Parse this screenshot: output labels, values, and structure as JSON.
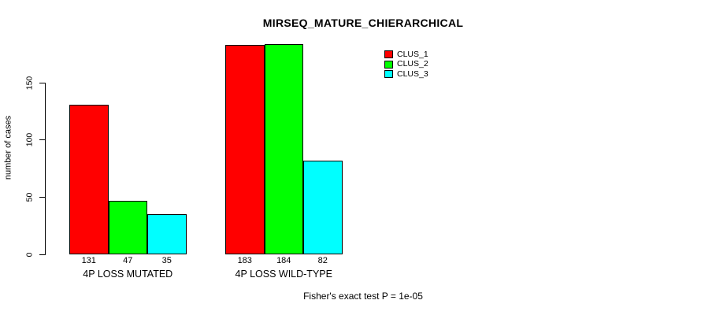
{
  "chart_data": {
    "type": "bar",
    "title": "MIRSEQ_MATURE_CHIERARCHICAL",
    "xlabel": "",
    "ylabel": "number of cases",
    "categories": [
      "4P LOSS MUTATED",
      "4P LOSS WILD-TYPE"
    ],
    "series": [
      {
        "name": "CLUS_1",
        "color": "#ff0000",
        "values": [
          131,
          183
        ]
      },
      {
        "name": "CLUS_2",
        "color": "#00ff00",
        "values": [
          47,
          184
        ]
      },
      {
        "name": "CLUS_3",
        "color": "#00ffff",
        "values": [
          35,
          82
        ]
      }
    ],
    "yticks": [
      0,
      50,
      100,
      150
    ],
    "ylim": [
      0,
      190
    ],
    "grid": false,
    "legend_position": "inside-top-right",
    "bar_value_labels": true,
    "annotation": "Fisher's exact test P = 1e-05",
    "colors": {
      "background": "#ffffff",
      "axis": "#000000",
      "text": "#000000",
      "bar_border": "#000000"
    }
  }
}
